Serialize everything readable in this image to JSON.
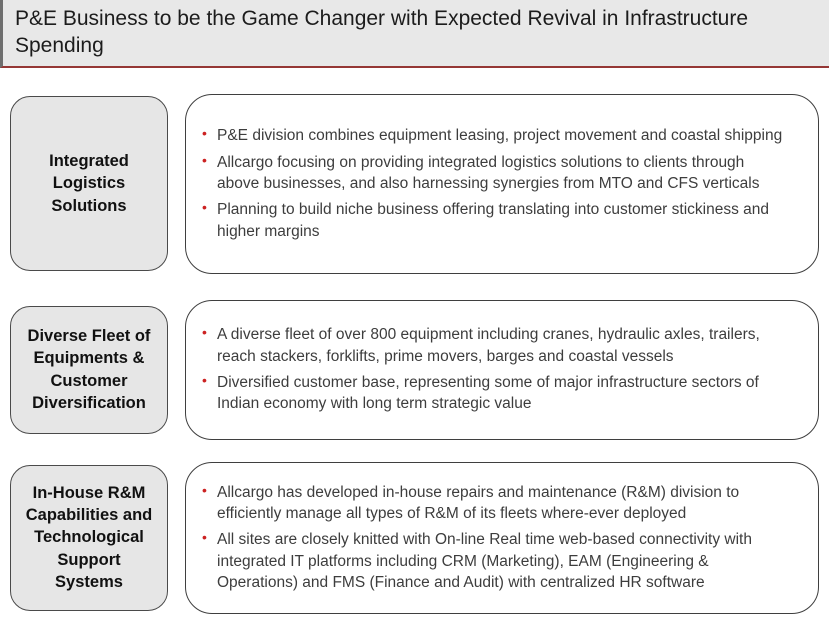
{
  "slide": {
    "title": "P&E Business to be the Game Changer with Expected Revival in Infrastructure Spending"
  },
  "colors": {
    "title_background": "#e8e8e8",
    "title_underline": "#953735",
    "title_left_bar": "#6e6e6e",
    "label_box_background": "#e6e6e6",
    "box_border": "#3f3f3f",
    "bullet_marker": "#cc2222",
    "body_text": "#3d3d3d"
  },
  "rows": [
    {
      "label": "Integrated Logistics Solutions",
      "bullets": [
        "P&E division combines equipment leasing, project movement and coastal shipping",
        "Allcargo focusing on providing integrated logistics solutions to clients through above businesses, and also harnessing synergies from MTO and CFS verticals",
        "Planning to build niche business offering translating into customer stickiness and higher margins"
      ]
    },
    {
      "label": "Diverse Fleet of Equipments & Customer Diversification",
      "bullets": [
        "A diverse fleet of over 800 equipment including cranes, hydraulic axles, trailers, reach stackers, forklifts, prime movers, barges and coastal vessels",
        "Diversified customer base, representing some of major infrastructure sectors of Indian economy with long term strategic value"
      ]
    },
    {
      "label": "In-House R&M Capabilities and Technological Support Systems",
      "bullets": [
        "Allcargo has developed in-house repairs and maintenance (R&M) division to efficiently manage all types of R&M of its fleets where-ever deployed",
        "All sites are closely knitted with On-line Real time web-based connectivity with integrated IT platforms including CRM (Marketing), EAM (Engineering & Operations) and FMS (Finance and Audit) with centralized HR software"
      ]
    }
  ]
}
